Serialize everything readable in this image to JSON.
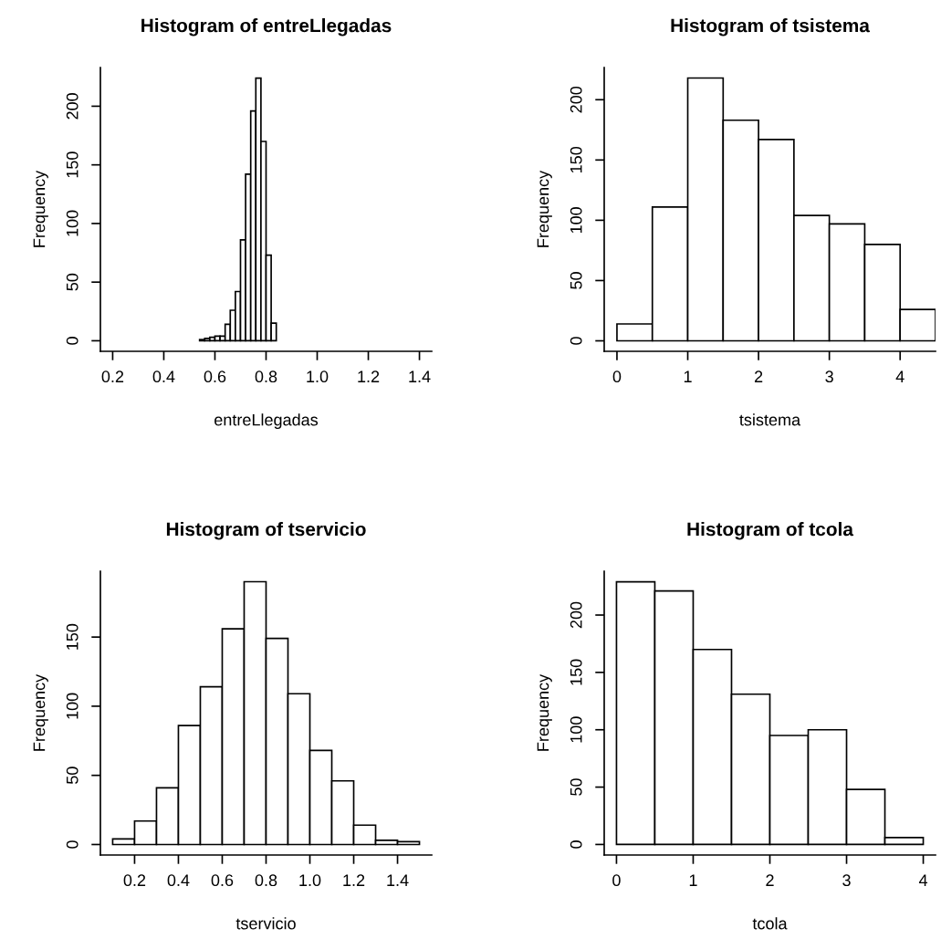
{
  "chart_data": [
    {
      "type": "histogram",
      "title": "Histogram of entreLlegadas",
      "xlabel": "entreLlegadas",
      "ylabel": "Frequency",
      "color": "#ffffff",
      "grid": false,
      "bins": [
        0.54,
        0.56,
        0.58,
        0.6,
        0.62,
        0.64,
        0.66,
        0.68,
        0.7,
        0.72,
        0.74,
        0.76,
        0.78,
        0.8,
        0.82,
        0.84
      ],
      "values": [
        1,
        2,
        3,
        4,
        4,
        14,
        26,
        42,
        86,
        142,
        196,
        224,
        170,
        73,
        15
      ],
      "xlim": [
        0.152,
        1.448
      ],
      "xticks": [
        {
          "value": 0.2,
          "label": "0.2"
        },
        {
          "value": 0.4,
          "label": "0.4"
        },
        {
          "value": 0.6,
          "label": "0.6"
        },
        {
          "value": 0.8,
          "label": "0.8"
        },
        {
          "value": 1.0,
          "label": "1.0"
        },
        {
          "value": 1.2,
          "label": "1.2"
        },
        {
          "value": 1.4,
          "label": "1.4"
        }
      ],
      "ylim": [
        -9,
        233
      ],
      "yticks": [
        0,
        50,
        100,
        150,
        200
      ]
    },
    {
      "type": "histogram",
      "title": "Histogram of tsistema",
      "xlabel": "tsistema",
      "ylabel": "Frequency",
      "color": "#ffffff",
      "grid": false,
      "bins": [
        0,
        0.5,
        1,
        1.5,
        2,
        2.5,
        3,
        3.5,
        4,
        4.5
      ],
      "values": [
        14,
        111,
        218,
        183,
        167,
        104,
        97,
        80,
        26
      ],
      "xlim": [
        -0.18,
        4.5
      ],
      "xticks": [
        0,
        1,
        2,
        3,
        4
      ],
      "ylim": [
        -8.7,
        226.7
      ],
      "yticks": [
        0,
        50,
        100,
        150,
        200
      ]
    },
    {
      "type": "histogram",
      "title": "Histogram of tservicio",
      "xlabel": "tservicio",
      "ylabel": "Frequency",
      "color": "#ffffff",
      "grid": false,
      "bins": [
        0.1,
        0.2,
        0.3,
        0.4,
        0.5,
        0.6,
        0.7,
        0.8,
        0.9,
        1.0,
        1.1,
        1.2,
        1.3,
        1.4,
        1.5
      ],
      "values": [
        4,
        17,
        41,
        86,
        114,
        156,
        190,
        149,
        109,
        68,
        46,
        14,
        3,
        2
      ],
      "xlim": [
        0.044,
        1.556
      ],
      "xticks": [
        {
          "value": 0.2,
          "label": "0.2"
        },
        {
          "value": 0.4,
          "label": "0.4"
        },
        {
          "value": 0.6,
          "label": "0.6"
        },
        {
          "value": 0.8,
          "label": "0.8"
        },
        {
          "value": 1.0,
          "label": "1.0"
        },
        {
          "value": 1.2,
          "label": "1.2"
        },
        {
          "value": 1.4,
          "label": "1.4"
        }
      ],
      "ylim": [
        -7.6,
        197.6
      ],
      "yticks": [
        0,
        50,
        100,
        150
      ]
    },
    {
      "type": "histogram",
      "title": "Histogram of tcola",
      "xlabel": "tcola",
      "ylabel": "Frequency",
      "color": "#ffffff",
      "grid": false,
      "bins": [
        0,
        0.5,
        1,
        1.5,
        2,
        2.5,
        3,
        3.5,
        4
      ],
      "values": [
        229,
        221,
        170,
        131,
        95,
        100,
        48,
        6
      ],
      "xlim": [
        -0.16,
        4.16
      ],
      "xticks": [
        0,
        1,
        2,
        3,
        4
      ],
      "ylim": [
        -9.2,
        238.2
      ],
      "yticks": [
        0,
        50,
        100,
        150,
        200
      ]
    }
  ]
}
